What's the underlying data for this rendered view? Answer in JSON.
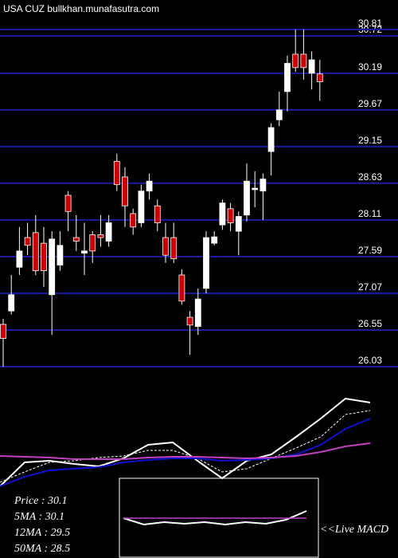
{
  "chart_data": [
    {
      "type": "candlestick",
      "title": "USA CUZ bullkhan.munafasutra.com",
      "open": [
        26.63,
        26.82,
        27.44,
        27.86,
        27.93,
        27.78,
        27.05,
        27.47,
        28.46,
        27.86,
        27.64,
        27.9,
        27.9,
        27.81,
        28.94,
        28.72,
        28.2,
        28.07,
        28.52,
        28.31,
        27.86,
        27.86,
        27.33,
        26.73,
        26.6,
        27.14,
        27.78,
        28.04,
        28.27,
        27.95,
        28.18,
        28.54,
        28.52,
        29.08,
        29.53,
        29.93,
        30.46,
        30.46,
        30.19,
        30.18
      ],
      "high": [
        26.71,
        27.33,
        28.01,
        28.07,
        28.18,
        28.01,
        27.95,
        27.95,
        28.52,
        28.18,
        28.07,
        27.95,
        28.18,
        28.18,
        29.05,
        28.86,
        28.27,
        28.61,
        28.77,
        28.4,
        28.07,
        28.07,
        27.41,
        26.82,
        27.14,
        27.95,
        27.95,
        28.4,
        28.35,
        28.23,
        28.91,
        28.8,
        28.77,
        29.48,
        29.93,
        30.44,
        30.81,
        30.81,
        30.5,
        30.38
      ],
      "low": [
        26.03,
        26.77,
        27.33,
        27.61,
        27.33,
        27.16,
        26.48,
        27.39,
        27.95,
        27.67,
        27.33,
        27.5,
        27.73,
        27.73,
        28.52,
        28.01,
        27.9,
        28.01,
        28.4,
        27.95,
        27.5,
        27.5,
        26.91,
        26.2,
        26.48,
        27.07,
        27.75,
        27.97,
        27.95,
        27.61,
        28.09,
        28.29,
        28.11,
        28.74,
        29.44,
        29.65,
        30.21,
        30.1,
        29.96,
        29.8
      ],
      "close": [
        26.43,
        27.05,
        27.67,
        27.75,
        27.39,
        27.39,
        27.84,
        27.75,
        28.23,
        27.81,
        27.67,
        27.67,
        27.86,
        28.07,
        28.61,
        28.31,
        28.01,
        28.52,
        28.66,
        28.07,
        27.61,
        27.56,
        26.96,
        26.62,
        26.99,
        27.86,
        27.87,
        28.35,
        28.07,
        28.16,
        28.66,
        28.56,
        28.69,
        29.42,
        29.67,
        30.33,
        30.27,
        30.27,
        30.38,
        30.07
      ],
      "up_color": "#ffffff",
      "down_color": "#cc0000",
      "grid_color": "#1a1aa0",
      "ylim": [
        26.03,
        30.81
      ],
      "yticks": [
        26.03,
        26.55,
        27.07,
        27.59,
        28.11,
        28.63,
        29.15,
        29.67,
        30.19,
        30.72,
        30.81
      ]
    },
    {
      "type": "line",
      "ylim": [
        0,
        150
      ],
      "series": [
        {
          "name": "Price  : 30.1",
          "color": "#ffffff",
          "values": [
            0,
            30,
            32,
            28,
            25,
            35,
            52,
            55,
            32,
            10,
            32,
            40,
            62,
            85,
            110,
            105
          ]
        },
        {
          "name": "5MA : 30.1",
          "color": "#ffffff",
          "dash": true,
          "values": [
            5,
            18,
            30,
            32,
            36,
            38,
            45,
            45,
            35,
            18,
            22,
            35,
            48,
            62,
            90,
            95
          ]
        },
        {
          "name": "12MA : 29.5",
          "color": "#1010d0",
          "values": [
            0,
            12,
            20,
            22,
            24,
            30,
            33,
            35,
            35,
            32,
            33,
            35,
            40,
            52,
            72,
            85
          ]
        },
        {
          "name": "50MA : 28.5",
          "color": "#c040c0",
          "values": [
            38,
            37,
            36,
            34,
            34,
            34,
            36,
            37,
            37,
            36,
            35,
            36,
            38,
            43,
            50,
            54
          ]
        }
      ]
    },
    {
      "type": "macd",
      "label": "<<Live MACD",
      "ylim": [
        -50,
        50
      ],
      "series": [
        {
          "color": "#ffffff",
          "values": [
            0,
            -8,
            -5,
            -7,
            -5,
            -8,
            -5,
            -7,
            -2,
            9
          ]
        },
        {
          "color": "#c040c0",
          "values": [
            0,
            0,
            0,
            0,
            0,
            0,
            0,
            0,
            0,
            0
          ]
        }
      ]
    }
  ]
}
